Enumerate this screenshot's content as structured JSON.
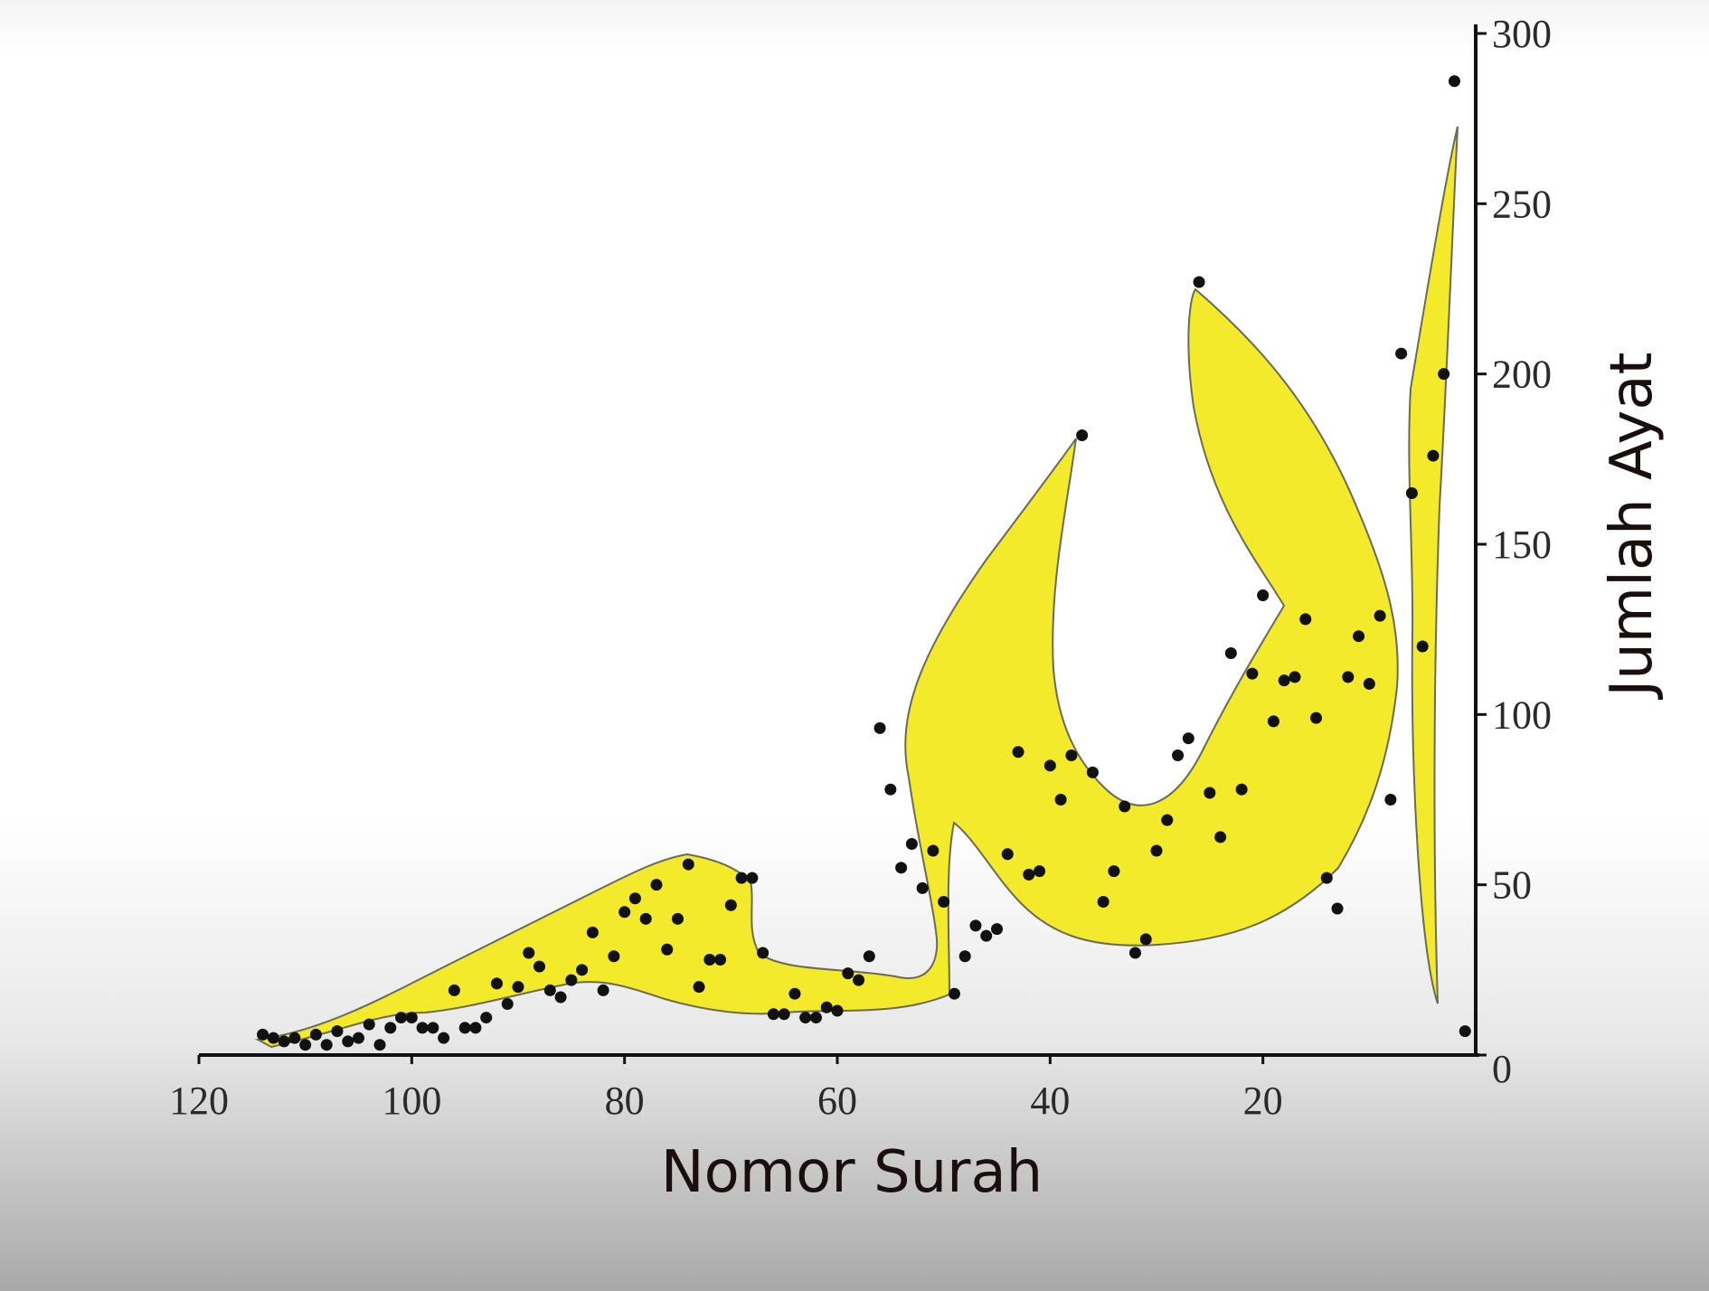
{
  "chart_data": {
    "type": "scatter",
    "xlabel": "Nomor Surah",
    "ylabel": "Jumlah Ayat",
    "xlim": [
      120,
      0
    ],
    "ylim": [
      0,
      300
    ],
    "x_ticks": [
      120,
      100,
      80,
      60,
      40,
      20
    ],
    "x_tick_labels": [
      "120",
      "100",
      "80",
      "60",
      "40",
      "20"
    ],
    "y_ticks": [
      0,
      50,
      100,
      150,
      200,
      250,
      300
    ],
    "y_tick_labels": [
      "0",
      "50",
      "100",
      "150",
      "200",
      "250",
      "300"
    ],
    "grid": false,
    "legend": "none",
    "colors": {
      "fill": "#f2ea2a",
      "outline": "#6b6b55",
      "point": "#111111",
      "axis": "#111111"
    },
    "series": [
      {
        "points": [
          [
            1,
            7
          ],
          [
            2,
            286
          ],
          [
            3,
            200
          ],
          [
            4,
            176
          ],
          [
            5,
            120
          ],
          [
            6,
            165
          ],
          [
            7,
            206
          ],
          [
            8,
            75
          ],
          [
            9,
            129
          ],
          [
            10,
            109
          ],
          [
            11,
            123
          ],
          [
            12,
            111
          ],
          [
            13,
            43
          ],
          [
            14,
            52
          ],
          [
            15,
            99
          ],
          [
            16,
            128
          ],
          [
            17,
            111
          ],
          [
            18,
            110
          ],
          [
            19,
            98
          ],
          [
            20,
            135
          ],
          [
            21,
            112
          ],
          [
            22,
            78
          ],
          [
            23,
            118
          ],
          [
            24,
            64
          ],
          [
            25,
            77
          ],
          [
            26,
            227
          ],
          [
            27,
            93
          ],
          [
            28,
            88
          ],
          [
            29,
            69
          ],
          [
            30,
            60
          ],
          [
            31,
            34
          ],
          [
            32,
            30
          ],
          [
            33,
            73
          ],
          [
            34,
            54
          ],
          [
            35,
            45
          ],
          [
            36,
            83
          ],
          [
            37,
            182
          ],
          [
            38,
            88
          ],
          [
            39,
            75
          ],
          [
            40,
            85
          ],
          [
            41,
            54
          ],
          [
            42,
            53
          ],
          [
            43,
            89
          ],
          [
            44,
            59
          ],
          [
            45,
            37
          ],
          [
            46,
            35
          ],
          [
            47,
            38
          ],
          [
            48,
            29
          ],
          [
            49,
            18
          ],
          [
            50,
            45
          ],
          [
            51,
            60
          ],
          [
            52,
            49
          ],
          [
            53,
            62
          ],
          [
            54,
            55
          ],
          [
            55,
            78
          ],
          [
            56,
            96
          ],
          [
            57,
            29
          ],
          [
            58,
            22
          ],
          [
            59,
            24
          ],
          [
            60,
            13
          ],
          [
            61,
            14
          ],
          [
            62,
            11
          ],
          [
            63,
            11
          ],
          [
            64,
            18
          ],
          [
            65,
            12
          ],
          [
            66,
            12
          ],
          [
            67,
            30
          ],
          [
            68,
            52
          ],
          [
            69,
            52
          ],
          [
            70,
            44
          ],
          [
            71,
            28
          ],
          [
            72,
            28
          ],
          [
            73,
            20
          ],
          [
            74,
            56
          ],
          [
            75,
            40
          ],
          [
            76,
            31
          ],
          [
            77,
            50
          ],
          [
            78,
            40
          ],
          [
            79,
            46
          ],
          [
            80,
            42
          ],
          [
            81,
            29
          ],
          [
            82,
            19
          ],
          [
            83,
            36
          ],
          [
            84,
            25
          ],
          [
            85,
            22
          ],
          [
            86,
            17
          ],
          [
            87,
            19
          ],
          [
            88,
            26
          ],
          [
            89,
            30
          ],
          [
            90,
            20
          ],
          [
            91,
            15
          ],
          [
            92,
            21
          ],
          [
            93,
            11
          ],
          [
            94,
            8
          ],
          [
            95,
            8
          ],
          [
            96,
            19
          ],
          [
            97,
            5
          ],
          [
            98,
            8
          ],
          [
            99,
            8
          ],
          [
            100,
            11
          ],
          [
            101,
            11
          ],
          [
            102,
            8
          ],
          [
            103,
            3
          ],
          [
            104,
            9
          ],
          [
            105,
            5
          ],
          [
            106,
            4
          ],
          [
            107,
            7
          ],
          [
            108,
            3
          ],
          [
            109,
            6
          ],
          [
            110,
            3
          ],
          [
            111,
            5
          ],
          [
            112,
            4
          ],
          [
            113,
            5
          ],
          [
            114,
            6
          ]
        ]
      }
    ]
  }
}
